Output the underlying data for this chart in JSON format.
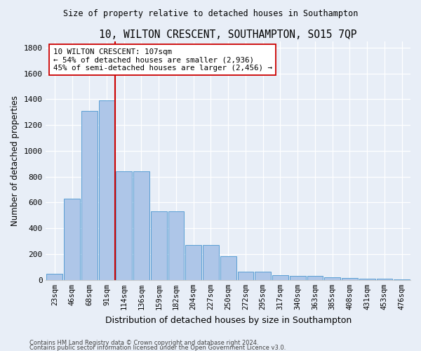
{
  "title": "10, WILTON CRESCENT, SOUTHAMPTON, SO15 7QP",
  "subtitle": "Size of property relative to detached houses in Southampton",
  "xlabel": "Distribution of detached houses by size in Southampton",
  "ylabel": "Number of detached properties",
  "categories": [
    "23sqm",
    "46sqm",
    "68sqm",
    "91sqm",
    "114sqm",
    "136sqm",
    "159sqm",
    "182sqm",
    "204sqm",
    "227sqm",
    "250sqm",
    "272sqm",
    "295sqm",
    "317sqm",
    "340sqm",
    "363sqm",
    "385sqm",
    "408sqm",
    "431sqm",
    "453sqm",
    "476sqm"
  ],
  "values": [
    50,
    630,
    1310,
    1390,
    840,
    840,
    530,
    530,
    270,
    270,
    185,
    65,
    65,
    35,
    30,
    30,
    20,
    15,
    10,
    8,
    5
  ],
  "bar_color": "#aec6e8",
  "bar_edge_color": "#5a9fd4",
  "vline_color": "#cc0000",
  "annotation_text": "10 WILTON CRESCENT: 107sqm\n← 54% of detached houses are smaller (2,936)\n45% of semi-detached houses are larger (2,456) →",
  "annotation_box_color": "#ffffff",
  "annotation_box_edge": "#cc0000",
  "ylim": [
    0,
    1850
  ],
  "yticks": [
    0,
    200,
    400,
    600,
    800,
    1000,
    1200,
    1400,
    1600,
    1800
  ],
  "footer_line1": "Contains HM Land Registry data © Crown copyright and database right 2024.",
  "footer_line2": "Contains public sector information licensed under the Open Government Licence v3.0.",
  "background_color": "#e8eef7"
}
